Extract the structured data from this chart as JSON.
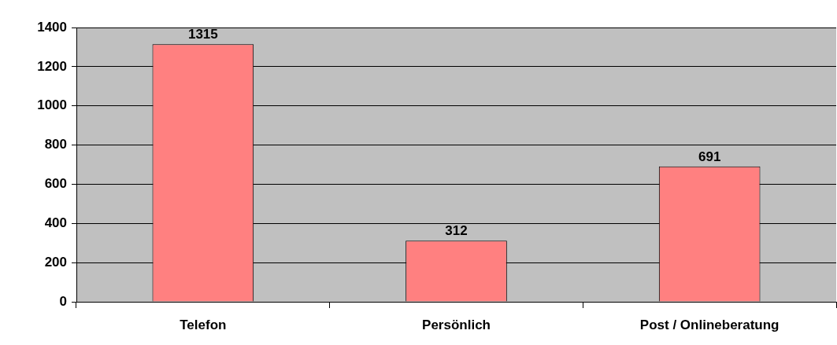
{
  "chart_data": {
    "type": "bar",
    "categories": [
      "Telefon",
      "Persönlich",
      "Post / Onlineberatung"
    ],
    "values": [
      1315,
      312,
      691
    ],
    "color": "#ff8080",
    "ylim": [
      0,
      1400
    ],
    "yticks": [
      0,
      200,
      400,
      600,
      800,
      1000,
      1200,
      1400
    ],
    "grid": "y",
    "data_labels": true,
    "legend": false
  }
}
